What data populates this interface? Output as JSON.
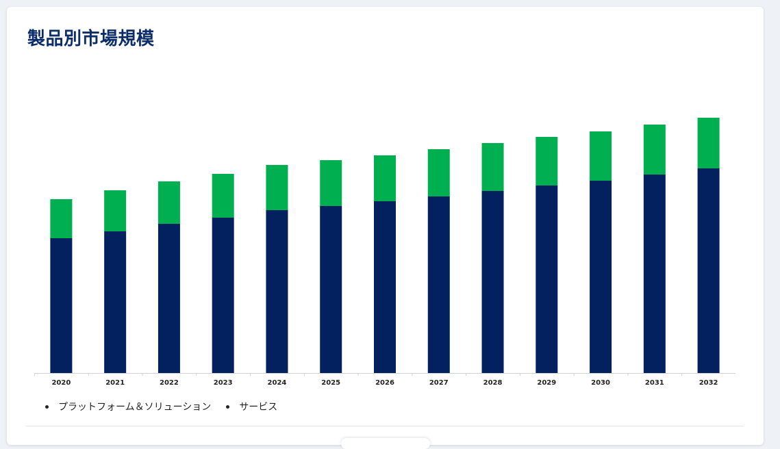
{
  "title": "製品別市場規模",
  "colors": {
    "title": "#0c2d6b",
    "platform": "#03215f",
    "services": "#00b050",
    "axis": "#cfd3d8",
    "tick_text": "#222222"
  },
  "legend": {
    "items": [
      {
        "label": "プラットフォーム＆ソリューション",
        "color": "#03215f"
      },
      {
        "label": "サービス",
        "color": "#00b050"
      }
    ]
  },
  "chart_data": {
    "type": "bar",
    "stacked": true,
    "categories": [
      "2020",
      "2021",
      "2022",
      "2023",
      "2024",
      "2025",
      "2026",
      "2027",
      "2028",
      "2029",
      "2030",
      "2031",
      "2032"
    ],
    "series": [
      {
        "name": "プラットフォーム＆ソリューション",
        "values": [
          197,
          207,
          218,
          227,
          238,
          244,
          251,
          258,
          266,
          274,
          281,
          290,
          299
        ]
      },
      {
        "name": "サービス",
        "values": [
          57,
          60,
          62,
          64,
          66,
          67,
          67,
          69,
          70,
          71,
          72,
          73,
          74
        ]
      }
    ],
    "ylim": [
      0,
      400
    ],
    "grid": false,
    "legend_position": "bottom-left"
  }
}
